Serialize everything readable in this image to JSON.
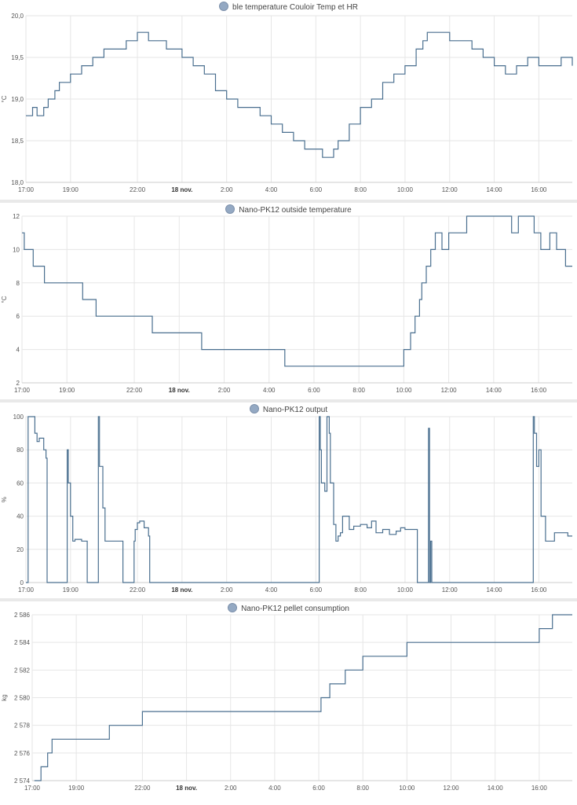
{
  "chart_data": [
    {
      "type": "line",
      "title": "ble temperature Couloir Temp et HR",
      "ylabel": "°C",
      "ylim": [
        18.0,
        20.0
      ],
      "yticks": [
        "18,0",
        "18,5",
        "19,0",
        "19,5",
        "20,0"
      ],
      "xlim": [
        17,
        41.5
      ],
      "xticks": [
        {
          "v": 17,
          "label": "17:00"
        },
        {
          "v": 19,
          "label": "19:00"
        },
        {
          "v": 22,
          "label": "22:00"
        },
        {
          "v": 24,
          "label": "18 nov.",
          "bold": true
        },
        {
          "v": 26,
          "label": "2:00"
        },
        {
          "v": 28,
          "label": "4:00"
        },
        {
          "v": 30,
          "label": "6:00"
        },
        {
          "v": 32,
          "label": "8:00"
        },
        {
          "v": 34,
          "label": "10:00"
        },
        {
          "v": 36,
          "label": "12:00"
        },
        {
          "v": 38,
          "label": "14:00"
        },
        {
          "v": 40,
          "label": "16:00"
        }
      ],
      "series": [
        {
          "color": "#4a6f8f",
          "x": [
            17.0,
            17.3,
            17.5,
            17.8,
            18.0,
            18.3,
            18.5,
            19.0,
            19.5,
            20.0,
            20.5,
            21.0,
            21.5,
            22.0,
            22.5,
            23.0,
            23.3,
            23.5,
            24.0,
            24.5,
            25.0,
            25.5,
            26.0,
            26.5,
            27.0,
            27.5,
            28.0,
            28.5,
            29.0,
            29.5,
            30.0,
            30.3,
            30.5,
            30.8,
            31.0,
            31.5,
            32.0,
            32.5,
            33.0,
            33.5,
            34.0,
            34.5,
            34.8,
            35.0,
            35.5,
            36.0,
            36.5,
            37.0,
            37.5,
            38.0,
            38.5,
            39.0,
            39.5,
            40.0,
            40.5,
            41.0,
            41.5
          ],
          "y": [
            18.8,
            18.9,
            18.8,
            18.9,
            19.0,
            19.1,
            19.2,
            19.3,
            19.4,
            19.5,
            19.6,
            19.6,
            19.7,
            19.8,
            19.7,
            19.7,
            19.6,
            19.6,
            19.5,
            19.4,
            19.3,
            19.1,
            19.0,
            18.9,
            18.9,
            18.8,
            18.7,
            18.6,
            18.5,
            18.4,
            18.4,
            18.3,
            18.3,
            18.4,
            18.5,
            18.7,
            18.9,
            19.0,
            19.2,
            19.3,
            19.4,
            19.6,
            19.7,
            19.8,
            19.8,
            19.7,
            19.7,
            19.6,
            19.5,
            19.4,
            19.3,
            19.4,
            19.5,
            19.4,
            19.4,
            19.5,
            19.4
          ]
        }
      ]
    },
    {
      "type": "line",
      "title": "Nano-PK12 outside temperature",
      "ylabel": "°C",
      "ylim": [
        2,
        12
      ],
      "yticks": [
        "2",
        "4",
        "6",
        "8",
        "10",
        "12"
      ],
      "xlim": [
        17,
        41.5
      ],
      "xticks": [
        {
          "v": 17,
          "label": "17:00"
        },
        {
          "v": 19,
          "label": "19:00"
        },
        {
          "v": 22,
          "label": "22:00"
        },
        {
          "v": 24,
          "label": "18 nov.",
          "bold": true
        },
        {
          "v": 26,
          "label": "2:00"
        },
        {
          "v": 28,
          "label": "4:00"
        },
        {
          "v": 30,
          "label": "6:00"
        },
        {
          "v": 32,
          "label": "8:00"
        },
        {
          "v": 34,
          "label": "10:00"
        },
        {
          "v": 36,
          "label": "12:00"
        },
        {
          "v": 38,
          "label": "14:00"
        },
        {
          "v": 40,
          "label": "16:00"
        }
      ],
      "series": [
        {
          "color": "#4a6f8f",
          "x": [
            17.0,
            17.1,
            17.5,
            18.0,
            19.7,
            20.3,
            20.8,
            22.8,
            25.0,
            28.7,
            33.5,
            34.0,
            34.3,
            34.5,
            34.7,
            34.8,
            35.0,
            35.2,
            35.4,
            35.7,
            36.0,
            36.5,
            36.8,
            37.0,
            37.7,
            38.8,
            39.1,
            39.8,
            40.1,
            40.5,
            40.8,
            41.2,
            41.5
          ],
          "y": [
            11,
            10,
            9,
            8,
            7,
            6,
            6,
            5,
            4,
            3,
            3,
            4,
            5,
            6,
            7,
            8,
            9,
            10,
            11,
            10,
            11,
            11,
            12,
            12,
            12,
            11,
            12,
            11,
            10,
            11,
            10,
            9,
            9
          ]
        }
      ]
    },
    {
      "type": "line",
      "title": "Nano-PK12 output",
      "ylabel": "%",
      "ylim": [
        0,
        100
      ],
      "yticks": [
        "0",
        "20",
        "40",
        "60",
        "80",
        "100"
      ],
      "xlim": [
        17,
        41.5
      ],
      "xticks": [
        {
          "v": 17,
          "label": "17:00"
        },
        {
          "v": 19,
          "label": "19:00"
        },
        {
          "v": 22,
          "label": "22:00"
        },
        {
          "v": 24,
          "label": "18 nov.",
          "bold": true
        },
        {
          "v": 26,
          "label": "2:00"
        },
        {
          "v": 28,
          "label": "4:00"
        },
        {
          "v": 30,
          "label": "6:00"
        },
        {
          "v": 32,
          "label": "8:00"
        },
        {
          "v": 34,
          "label": "10:00"
        },
        {
          "v": 36,
          "label": "12:00"
        },
        {
          "v": 38,
          "label": "14:00"
        },
        {
          "v": 40,
          "label": "16:00"
        }
      ],
      "series": [
        {
          "color": "#4a6f8f",
          "x": [
            17.0,
            17.05,
            17.1,
            17.3,
            17.4,
            17.5,
            17.6,
            17.8,
            17.9,
            17.95,
            18.8,
            18.85,
            18.9,
            19.0,
            19.1,
            19.2,
            19.5,
            19.7,
            19.75,
            20.2,
            20.25,
            20.3,
            20.45,
            20.55,
            21.0,
            21.3,
            21.35,
            21.8,
            21.85,
            21.9,
            22.0,
            22.1,
            22.3,
            22.5,
            22.55,
            30.1,
            30.15,
            30.2,
            30.25,
            30.4,
            30.5,
            30.6,
            30.65,
            30.8,
            30.9,
            31.0,
            31.1,
            31.2,
            31.5,
            31.7,
            32.0,
            32.3,
            32.5,
            32.7,
            33.0,
            33.3,
            33.6,
            33.8,
            34.0,
            34.5,
            34.55,
            35.0,
            35.05,
            35.1,
            35.15,
            35.2,
            39.7,
            39.75,
            39.8,
            39.9,
            40.0,
            40.1,
            40.3,
            40.5,
            40.7,
            41.0,
            41.3,
            41.5
          ],
          "y": [
            0,
            0,
            100,
            100,
            90,
            85,
            87,
            80,
            75,
            0,
            0,
            80,
            60,
            40,
            25,
            26,
            25,
            25,
            0,
            0,
            100,
            70,
            45,
            25,
            25,
            25,
            0,
            0,
            25,
            32,
            36,
            37,
            33,
            28,
            0,
            0,
            100,
            80,
            60,
            55,
            100,
            90,
            60,
            35,
            25,
            28,
            30,
            40,
            32,
            34,
            35,
            33,
            37,
            30,
            32,
            29,
            31,
            33,
            32,
            32,
            0,
            0,
            93,
            0,
            25,
            0,
            0,
            100,
            90,
            70,
            80,
            40,
            25,
            25,
            30,
            30,
            28,
            28
          ]
        }
      ]
    },
    {
      "type": "line",
      "title": "Nano-PK12 pellet consumption",
      "ylabel": "kg",
      "ylim": [
        2574,
        2586
      ],
      "yticks": [
        "2 574",
        "2 576",
        "2 578",
        "2 580",
        "2 582",
        "2 584",
        "2 586"
      ],
      "xlim": [
        17,
        41.5
      ],
      "xticks": [
        {
          "v": 17,
          "label": "17:00"
        },
        {
          "v": 19,
          "label": "19:00"
        },
        {
          "v": 22,
          "label": "22:00"
        },
        {
          "v": 24,
          "label": "18 nov.",
          "bold": true
        },
        {
          "v": 26,
          "label": "2:00"
        },
        {
          "v": 28,
          "label": "4:00"
        },
        {
          "v": 30,
          "label": "6:00"
        },
        {
          "v": 32,
          "label": "8:00"
        },
        {
          "v": 34,
          "label": "10:00"
        },
        {
          "v": 36,
          "label": "12:00"
        },
        {
          "v": 38,
          "label": "14:00"
        },
        {
          "v": 40,
          "label": "16:00"
        }
      ],
      "series": [
        {
          "color": "#4a6f8f",
          "x": [
            17.1,
            17.4,
            17.7,
            17.9,
            18.3,
            20.2,
            20.5,
            21.5,
            22.0,
            29.8,
            30.1,
            30.5,
            31.2,
            32.0,
            33.0,
            34.0,
            34.2,
            36.0,
            38.0,
            39.9,
            40.0,
            40.6,
            41.5
          ],
          "y": [
            2574,
            2575,
            2576,
            2577,
            2577,
            2577,
            2578,
            2578,
            2579,
            2579,
            2580,
            2581,
            2582,
            2583,
            2583,
            2584,
            2584,
            2584,
            2584,
            2584,
            2585,
            2586,
            2586
          ]
        }
      ]
    }
  ]
}
